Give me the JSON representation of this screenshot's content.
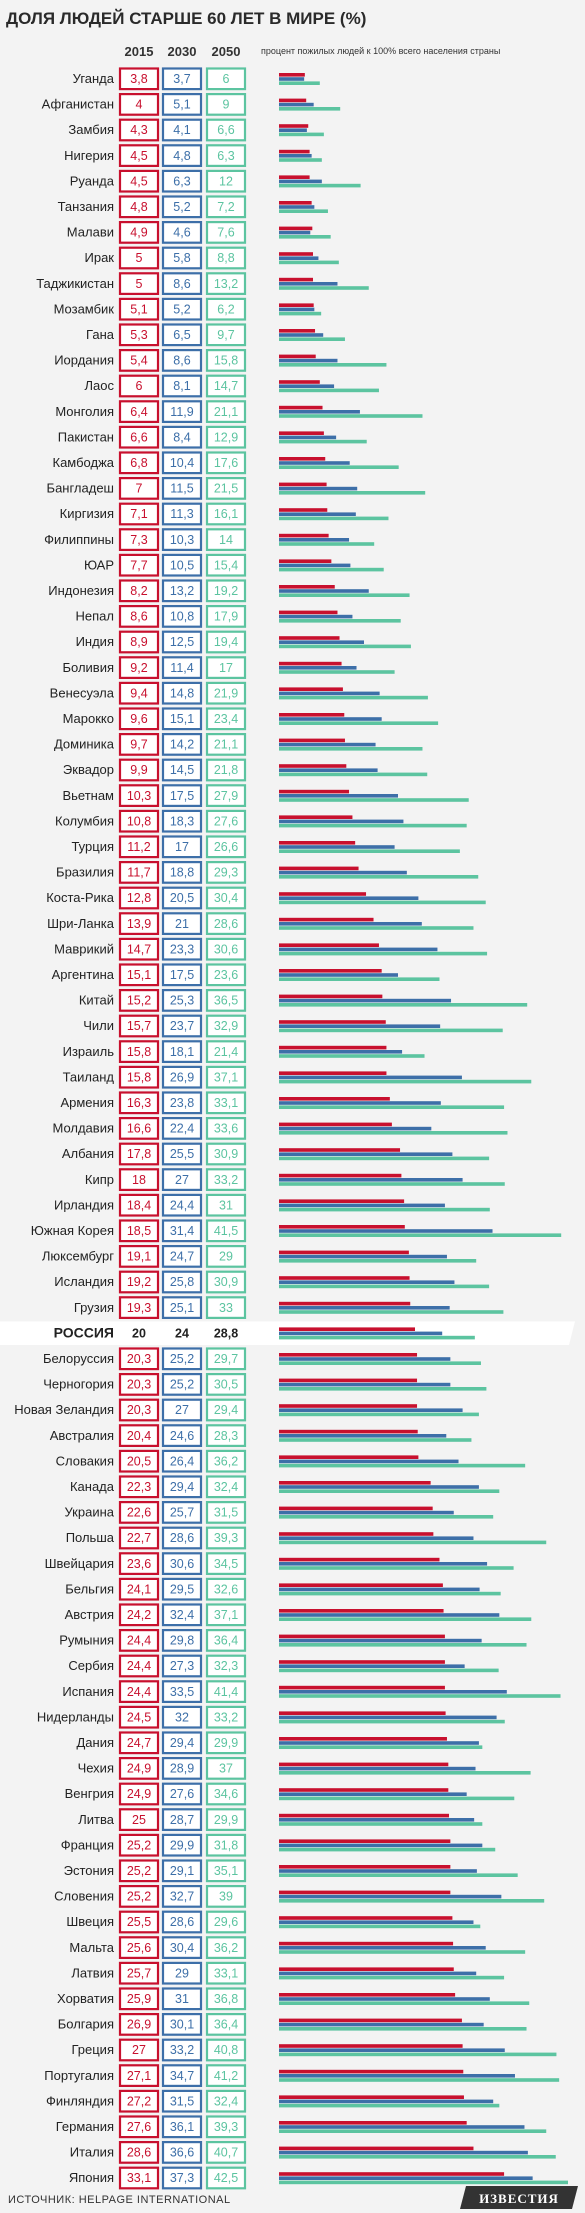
{
  "chart_data": {
    "type": "bar",
    "title": "ДОЛЯ ЛЮДЕЙ СТАРШЕ 60 ЛЕТ В МИРЕ (%)",
    "subtitle": "процент пожилых людей к 100% всего населения страны",
    "series_colors": [
      "#c8102e",
      "#3d6fa8",
      "#5cc4a0"
    ],
    "highlight_category": "РОССИЯ",
    "series": [
      {
        "name": "2015",
        "values": [
          3.8,
          4,
          4.3,
          4.5,
          4.5,
          4.8,
          4.9,
          5,
          5,
          5.1,
          5.3,
          5.4,
          6,
          6.4,
          6.6,
          6.8,
          7,
          7.1,
          7.3,
          7.7,
          8.2,
          8.6,
          8.9,
          9.2,
          9.4,
          9.6,
          9.7,
          9.9,
          10.3,
          10.8,
          11.2,
          11.7,
          12.8,
          13.9,
          14.7,
          15.1,
          15.2,
          15.7,
          15.8,
          15.8,
          16.3,
          16.6,
          17.8,
          18,
          18.4,
          18.5,
          19.1,
          19.2,
          19.3,
          20,
          20.3,
          20.3,
          20.3,
          20.4,
          20.5,
          22.3,
          22.6,
          22.7,
          23.6,
          24.1,
          24.2,
          24.4,
          24.4,
          24.4,
          24.5,
          24.7,
          24.9,
          24.9,
          25,
          25.2,
          25.2,
          25.2,
          25.5,
          25.6,
          25.7,
          25.9,
          26.9,
          27,
          27.1,
          27.2,
          27.6,
          28.6,
          33.1
        ]
      },
      {
        "name": "2030",
        "values": [
          3.7,
          5.1,
          4.1,
          4.8,
          6.3,
          5.2,
          4.6,
          5.8,
          8.6,
          5.2,
          6.5,
          8.6,
          8.1,
          11.9,
          8.4,
          10.4,
          11.5,
          11.3,
          10.3,
          10.5,
          13.2,
          10.8,
          12.5,
          11.4,
          14.8,
          15.1,
          14.2,
          14.5,
          17.5,
          18.3,
          17,
          18.8,
          20.5,
          21,
          23.3,
          17.5,
          25.3,
          23.7,
          18.1,
          26.9,
          23.8,
          22.4,
          25.5,
          27,
          24.4,
          31.4,
          24.7,
          25.8,
          25.1,
          24,
          25.2,
          25.2,
          27,
          24.6,
          26.4,
          29.4,
          25.7,
          28.6,
          30.6,
          29.5,
          32.4,
          29.8,
          27.3,
          33.5,
          32,
          29.4,
          28.9,
          27.6,
          28.7,
          29.9,
          29.1,
          32.7,
          28.6,
          30.4,
          29,
          31,
          30.1,
          33.2,
          34.7,
          31.5,
          36.1,
          36.6,
          37.3
        ]
      },
      {
        "name": "2050",
        "values": [
          6,
          9,
          6.6,
          6.3,
          12,
          7.2,
          7.6,
          8.8,
          13.2,
          6.2,
          9.7,
          15.8,
          14.7,
          21.1,
          12.9,
          17.6,
          21.5,
          16.1,
          14,
          15.4,
          19.2,
          17.9,
          19.4,
          17,
          21.9,
          23.4,
          21.1,
          21.8,
          27.9,
          27.6,
          26.6,
          29.3,
          30.4,
          28.6,
          30.6,
          23.6,
          36.5,
          32.9,
          21.4,
          37.1,
          33.1,
          33.6,
          30.9,
          33.2,
          31,
          41.5,
          29,
          30.9,
          33,
          28.8,
          29.7,
          30.5,
          29.4,
          28.3,
          36.2,
          32.4,
          31.5,
          39.3,
          34.5,
          32.6,
          37.1,
          36.4,
          32.3,
          41.4,
          33.2,
          29.9,
          37,
          34.6,
          29.9,
          31.8,
          35.1,
          39,
          29.6,
          36.2,
          33.1,
          36.8,
          36.4,
          40.8,
          41.2,
          32.4,
          39.3,
          40.7,
          42.5
        ]
      }
    ],
    "categories": [
      "Уганда",
      "Афганистан",
      "Замбия",
      "Нигерия",
      "Руанда",
      "Танзания",
      "Малави",
      "Ирак",
      "Таджикистан",
      "Мозамбик",
      "Гана",
      "Иордания",
      "Лаос",
      "Монголия",
      "Пакистан",
      "Камбоджа",
      "Бангладеш",
      "Киргизия",
      "Филиппины",
      "ЮАР",
      "Индонезия",
      "Непал",
      "Индия",
      "Боливия",
      "Венесуэла",
      "Марокко",
      "Доминика",
      "Эквадор",
      "Вьетнам",
      "Колумбия",
      "Турция",
      "Бразилия",
      "Коста-Рика",
      "Шри-Ланка",
      "Маврикий",
      "Аргентина",
      "Китай",
      "Чили",
      "Израиль",
      "Таиланд",
      "Армения",
      "Молдавия",
      "Албания",
      "Кипр",
      "Ирландия",
      "Южная Корея",
      "Люксембург",
      "Исландия",
      "Грузия",
      "РОССИЯ",
      "Белоруссия",
      "Черногория",
      "Новая Зеландия",
      "Австралия",
      "Словакия",
      "Канада",
      "Украина",
      "Польша",
      "Швейцария",
      "Бельгия",
      "Австрия",
      "Румыния",
      "Сербия",
      "Испания",
      "Нидерланды",
      "Дания",
      "Чехия",
      "Венгрия",
      "Литва",
      "Франция",
      "Эстония",
      "Словения",
      "Швеция",
      "Мальта",
      "Латвия",
      "Хорватия",
      "Болгария",
      "Греция",
      "Португалия",
      "Финляндия",
      "Германия",
      "Италия",
      "Япония"
    ]
  },
  "footer": {
    "source": "ИСТОЧНИК: HELPAGE INTERNATIONAL",
    "brand": "ИЗВЕСТИЯ"
  }
}
